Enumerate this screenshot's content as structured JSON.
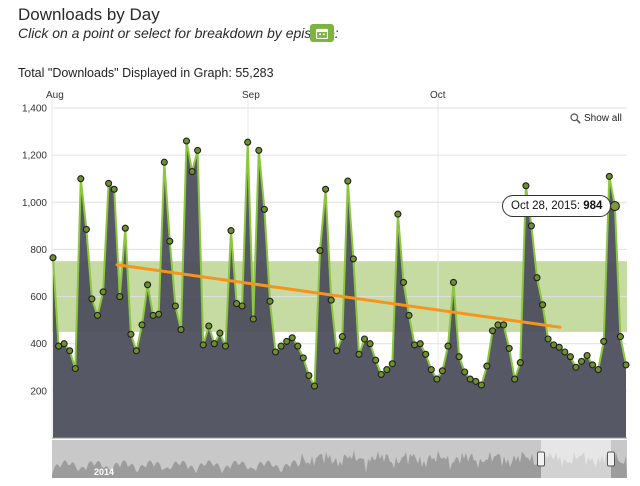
{
  "header": {
    "title": "Downloads by Day",
    "subtitle": "Click on a point or select for breakdown by episode:",
    "calendar_icon": "calendar-icon",
    "total_text": "Total \"Downloads\" Displayed in Graph: 55,283"
  },
  "controls": {
    "show_all": "Show all",
    "show_all_icon": "zoom-icon"
  },
  "tooltip": {
    "date": "Oct 28, 2015:",
    "value": "984"
  },
  "navigator": {
    "year_label": "2014"
  },
  "colors": {
    "area": "#4d4f5e",
    "line": "#8dc63f",
    "trend": "#f7941d",
    "band": "#c5dba1",
    "grid": "#e0e0e0",
    "navigator": "#c8c8c8"
  },
  "chart_data": {
    "type": "area",
    "title": "Downloads by Day",
    "x_labels": [
      "Aug",
      "Sep",
      "Oct"
    ],
    "ylim": [
      0,
      1400
    ],
    "yticks": [
      "200",
      "400",
      "600",
      "800",
      "1,000",
      "1,200",
      "1,400"
    ],
    "grid": true,
    "plot_band": [
      450,
      750
    ],
    "values": [
      765,
      390,
      400,
      370,
      295,
      1100,
      885,
      590,
      520,
      620,
      1080,
      1055,
      600,
      890,
      440,
      370,
      480,
      650,
      520,
      525,
      1170,
      835,
      560,
      460,
      1260,
      1130,
      1220,
      395,
      475,
      400,
      445,
      390,
      880,
      570,
      560,
      1255,
      505,
      1220,
      970,
      580,
      365,
      390,
      410,
      425,
      390,
      340,
      265,
      220,
      795,
      1055,
      585,
      370,
      430,
      1090,
      760,
      355,
      420,
      400,
      330,
      270,
      290,
      315,
      950,
      660,
      520,
      395,
      400,
      355,
      290,
      250,
      285,
      390,
      660,
      345,
      280,
      250,
      240,
      225,
      305,
      455,
      480,
      480,
      380,
      250,
      320,
      1070,
      900,
      680,
      565,
      420,
      395,
      385,
      365,
      345,
      300,
      325,
      350,
      310,
      290,
      410,
      1110,
      984,
      430,
      310
    ],
    "trend": {
      "start": 735,
      "end": 470
    },
    "highlight": {
      "date": "Oct 28, 2015",
      "value": 984
    }
  }
}
